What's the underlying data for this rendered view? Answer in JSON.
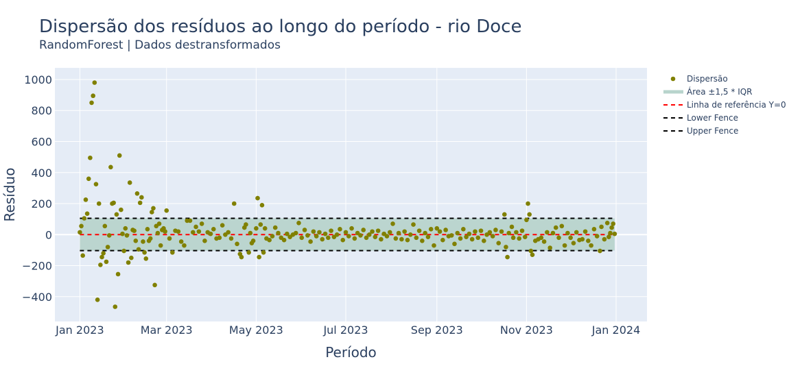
{
  "chart_data": {
    "type": "scatter",
    "title": "Dispersão dos resíduos ao longo do período - rio Doce",
    "subtitle": "RandomForest | Dados destransformados",
    "xlabel": "Período",
    "ylabel": "Resíduo",
    "xlim": [
      "2022-12-15",
      "2024-01-22"
    ],
    "ylim": [
      -560,
      1075
    ],
    "x_ticks": [
      {
        "date": "2023-01-01",
        "label": "Jan 2023"
      },
      {
        "date": "2023-03-01",
        "label": "Mar 2023"
      },
      {
        "date": "2023-05-01",
        "label": "May 2023"
      },
      {
        "date": "2023-07-01",
        "label": "Jul 2023"
      },
      {
        "date": "2023-09-01",
        "label": "Sep 2023"
      },
      {
        "date": "2023-11-01",
        "label": "Nov 2023"
      },
      {
        "date": "2024-01-01",
        "label": "Jan 2024"
      }
    ],
    "y_ticks": [
      {
        "value": 1000,
        "label": "1000"
      },
      {
        "value": 800,
        "label": "800"
      },
      {
        "value": 600,
        "label": "600"
      },
      {
        "value": 400,
        "label": "400"
      },
      {
        "value": 200,
        "label": "200"
      },
      {
        "value": 0,
        "label": "0"
      },
      {
        "value": -200,
        "label": "−200"
      },
      {
        "value": -400,
        "label": "−400"
      }
    ],
    "grid": true,
    "legend_position": "top-right",
    "lower_fence": -103,
    "upper_fence": 105,
    "fence_range": [
      "2023-01-01",
      "2023-12-31"
    ],
    "series": [
      {
        "name": "Dispersão",
        "type": "scatter",
        "color": "#808000",
        "points": [
          {
            "x": "2023-01-01",
            "y": 15
          },
          {
            "x": "2023-01-02",
            "y": 55
          },
          {
            "x": "2023-01-03",
            "y": -135
          },
          {
            "x": "2023-01-04",
            "y": 105
          },
          {
            "x": "2023-01-05",
            "y": 225
          },
          {
            "x": "2023-01-06",
            "y": 135
          },
          {
            "x": "2023-01-07",
            "y": 360
          },
          {
            "x": "2023-01-08",
            "y": 495
          },
          {
            "x": "2023-01-09",
            "y": 850
          },
          {
            "x": "2023-01-10",
            "y": 895
          },
          {
            "x": "2023-01-11",
            "y": 980
          },
          {
            "x": "2023-01-12",
            "y": 325
          },
          {
            "x": "2023-01-13",
            "y": -420
          },
          {
            "x": "2023-01-14",
            "y": 200
          },
          {
            "x": "2023-01-15",
            "y": -195
          },
          {
            "x": "2023-01-16",
            "y": -145
          },
          {
            "x": "2023-01-17",
            "y": -120
          },
          {
            "x": "2023-01-18",
            "y": 55
          },
          {
            "x": "2023-01-19",
            "y": -175
          },
          {
            "x": "2023-01-20",
            "y": -80
          },
          {
            "x": "2023-01-21",
            "y": -5
          },
          {
            "x": "2023-01-22",
            "y": 435
          },
          {
            "x": "2023-01-23",
            "y": 200
          },
          {
            "x": "2023-01-24",
            "y": 205
          },
          {
            "x": "2023-01-25",
            "y": -465
          },
          {
            "x": "2023-01-26",
            "y": 130
          },
          {
            "x": "2023-01-27",
            "y": -255
          },
          {
            "x": "2023-01-28",
            "y": 510
          },
          {
            "x": "2023-01-29",
            "y": 160
          },
          {
            "x": "2023-01-30",
            "y": 5
          },
          {
            "x": "2023-01-31",
            "y": -105
          },
          {
            "x": "2023-02-01",
            "y": 40
          },
          {
            "x": "2023-02-02",
            "y": -5
          },
          {
            "x": "2023-02-03",
            "y": -180
          },
          {
            "x": "2023-02-04",
            "y": 335
          },
          {
            "x": "2023-02-05",
            "y": -150
          },
          {
            "x": "2023-02-06",
            "y": 30
          },
          {
            "x": "2023-02-07",
            "y": 25
          },
          {
            "x": "2023-02-08",
            "y": -40
          },
          {
            "x": "2023-02-09",
            "y": 265
          },
          {
            "x": "2023-02-10",
            "y": -95
          },
          {
            "x": "2023-02-11",
            "y": 205
          },
          {
            "x": "2023-02-12",
            "y": 240
          },
          {
            "x": "2023-02-13",
            "y": -45
          },
          {
            "x": "2023-02-14",
            "y": -115
          },
          {
            "x": "2023-02-15",
            "y": -155
          },
          {
            "x": "2023-02-16",
            "y": 35
          },
          {
            "x": "2023-02-17",
            "y": -40
          },
          {
            "x": "2023-02-18",
            "y": -25
          },
          {
            "x": "2023-02-19",
            "y": 145
          },
          {
            "x": "2023-02-20",
            "y": 170
          },
          {
            "x": "2023-02-21",
            "y": -325
          },
          {
            "x": "2023-02-22",
            "y": 55
          },
          {
            "x": "2023-02-23",
            "y": 10
          },
          {
            "x": "2023-02-24",
            "y": 70
          },
          {
            "x": "2023-02-25",
            "y": -70
          },
          {
            "x": "2023-02-26",
            "y": 30
          },
          {
            "x": "2023-02-27",
            "y": 40
          },
          {
            "x": "2023-02-28",
            "y": 20
          },
          {
            "x": "2023-03-01",
            "y": 155
          },
          {
            "x": "2023-03-03",
            "y": -25
          },
          {
            "x": "2023-03-05",
            "y": -115
          },
          {
            "x": "2023-03-07",
            "y": 25
          },
          {
            "x": "2023-03-09",
            "y": 20
          },
          {
            "x": "2023-03-11",
            "y": -45
          },
          {
            "x": "2023-03-13",
            "y": -70
          },
          {
            "x": "2023-03-15",
            "y": 90
          },
          {
            "x": "2023-03-17",
            "y": 90
          },
          {
            "x": "2023-03-19",
            "y": 15
          },
          {
            "x": "2023-03-21",
            "y": 50
          },
          {
            "x": "2023-03-23",
            "y": 20
          },
          {
            "x": "2023-03-25",
            "y": 70
          },
          {
            "x": "2023-03-27",
            "y": -40
          },
          {
            "x": "2023-03-29",
            "y": 15
          },
          {
            "x": "2023-03-31",
            "y": 5
          },
          {
            "x": "2023-04-02",
            "y": 35
          },
          {
            "x": "2023-04-04",
            "y": -25
          },
          {
            "x": "2023-04-06",
            "y": -20
          },
          {
            "x": "2023-04-08",
            "y": 60
          },
          {
            "x": "2023-04-10",
            "y": 0
          },
          {
            "x": "2023-04-12",
            "y": 15
          },
          {
            "x": "2023-04-14",
            "y": -25
          },
          {
            "x": "2023-04-16",
            "y": 200
          },
          {
            "x": "2023-04-18",
            "y": -60
          },
          {
            "x": "2023-04-20",
            "y": -125
          },
          {
            "x": "2023-04-21",
            "y": -145
          },
          {
            "x": "2023-04-23",
            "y": 45
          },
          {
            "x": "2023-04-24",
            "y": 65
          },
          {
            "x": "2023-04-26",
            "y": -115
          },
          {
            "x": "2023-04-27",
            "y": 10
          },
          {
            "x": "2023-04-28",
            "y": -55
          },
          {
            "x": "2023-04-29",
            "y": -40
          },
          {
            "x": "2023-05-01",
            "y": 40
          },
          {
            "x": "2023-05-02",
            "y": 235
          },
          {
            "x": "2023-05-03",
            "y": -145
          },
          {
            "x": "2023-05-04",
            "y": 65
          },
          {
            "x": "2023-05-05",
            "y": 190
          },
          {
            "x": "2023-05-06",
            "y": -115
          },
          {
            "x": "2023-05-07",
            "y": 40
          },
          {
            "x": "2023-05-08",
            "y": -25
          },
          {
            "x": "2023-05-10",
            "y": -35
          },
          {
            "x": "2023-05-12",
            "y": -10
          },
          {
            "x": "2023-05-14",
            "y": 45
          },
          {
            "x": "2023-05-16",
            "y": 10
          },
          {
            "x": "2023-05-18",
            "y": -20
          },
          {
            "x": "2023-05-20",
            "y": -35
          },
          {
            "x": "2023-05-22",
            "y": 5
          },
          {
            "x": "2023-05-24",
            "y": -15
          },
          {
            "x": "2023-05-26",
            "y": 0
          },
          {
            "x": "2023-05-28",
            "y": 10
          },
          {
            "x": "2023-05-30",
            "y": 75
          },
          {
            "x": "2023-06-01",
            "y": -20
          },
          {
            "x": "2023-06-03",
            "y": 30
          },
          {
            "x": "2023-06-05",
            "y": -5
          },
          {
            "x": "2023-06-07",
            "y": -45
          },
          {
            "x": "2023-06-09",
            "y": 20
          },
          {
            "x": "2023-06-11",
            "y": -10
          },
          {
            "x": "2023-06-13",
            "y": 15
          },
          {
            "x": "2023-06-15",
            "y": -30
          },
          {
            "x": "2023-06-17",
            "y": 5
          },
          {
            "x": "2023-06-19",
            "y": -20
          },
          {
            "x": "2023-06-21",
            "y": 25
          },
          {
            "x": "2023-06-23",
            "y": -15
          },
          {
            "x": "2023-06-25",
            "y": 0
          },
          {
            "x": "2023-06-27",
            "y": 35
          },
          {
            "x": "2023-06-29",
            "y": -35
          },
          {
            "x": "2023-07-01",
            "y": 15
          },
          {
            "x": "2023-07-03",
            "y": -10
          },
          {
            "x": "2023-07-05",
            "y": 40
          },
          {
            "x": "2023-07-07",
            "y": -25
          },
          {
            "x": "2023-07-09",
            "y": 10
          },
          {
            "x": "2023-07-11",
            "y": -5
          },
          {
            "x": "2023-07-13",
            "y": 30
          },
          {
            "x": "2023-07-15",
            "y": -20
          },
          {
            "x": "2023-07-17",
            "y": 0
          },
          {
            "x": "2023-07-19",
            "y": 20
          },
          {
            "x": "2023-07-21",
            "y": -15
          },
          {
            "x": "2023-07-23",
            "y": 25
          },
          {
            "x": "2023-07-25",
            "y": -30
          },
          {
            "x": "2023-07-27",
            "y": 5
          },
          {
            "x": "2023-07-29",
            "y": -10
          },
          {
            "x": "2023-07-31",
            "y": 15
          },
          {
            "x": "2023-08-02",
            "y": 70
          },
          {
            "x": "2023-08-04",
            "y": -25
          },
          {
            "x": "2023-08-06",
            "y": 10
          },
          {
            "x": "2023-08-08",
            "y": -30
          },
          {
            "x": "2023-08-10",
            "y": 20
          },
          {
            "x": "2023-08-12",
            "y": -35
          },
          {
            "x": "2023-08-14",
            "y": 0
          },
          {
            "x": "2023-08-16",
            "y": 65
          },
          {
            "x": "2023-08-18",
            "y": -20
          },
          {
            "x": "2023-08-20",
            "y": 25
          },
          {
            "x": "2023-08-22",
            "y": -40
          },
          {
            "x": "2023-08-24",
            "y": 10
          },
          {
            "x": "2023-08-26",
            "y": -15
          },
          {
            "x": "2023-08-28",
            "y": 35
          },
          {
            "x": "2023-08-30",
            "y": -70
          },
          {
            "x": "2023-09-01",
            "y": 40
          },
          {
            "x": "2023-09-03",
            "y": 20
          },
          {
            "x": "2023-09-05",
            "y": -35
          },
          {
            "x": "2023-09-07",
            "y": 30
          },
          {
            "x": "2023-09-09",
            "y": -10
          },
          {
            "x": "2023-09-11",
            "y": -5
          },
          {
            "x": "2023-09-13",
            "y": -60
          },
          {
            "x": "2023-09-15",
            "y": 10
          },
          {
            "x": "2023-09-17",
            "y": -25
          },
          {
            "x": "2023-09-19",
            "y": 35
          },
          {
            "x": "2023-09-21",
            "y": -15
          },
          {
            "x": "2023-09-23",
            "y": 5
          },
          {
            "x": "2023-09-25",
            "y": -30
          },
          {
            "x": "2023-09-27",
            "y": 20
          },
          {
            "x": "2023-09-29",
            "y": -20
          },
          {
            "x": "2023-10-01",
            "y": 25
          },
          {
            "x": "2023-10-03",
            "y": -40
          },
          {
            "x": "2023-10-05",
            "y": 0
          },
          {
            "x": "2023-10-07",
            "y": 15
          },
          {
            "x": "2023-10-09",
            "y": -10
          },
          {
            "x": "2023-10-11",
            "y": 30
          },
          {
            "x": "2023-10-13",
            "y": -55
          },
          {
            "x": "2023-10-15",
            "y": 20
          },
          {
            "x": "2023-10-17",
            "y": 130
          },
          {
            "x": "2023-10-18",
            "y": -80
          },
          {
            "x": "2023-10-19",
            "y": -145
          },
          {
            "x": "2023-10-20",
            "y": 10
          },
          {
            "x": "2023-10-22",
            "y": 50
          },
          {
            "x": "2023-10-23",
            "y": -20
          },
          {
            "x": "2023-10-25",
            "y": 15
          },
          {
            "x": "2023-10-27",
            "y": -25
          },
          {
            "x": "2023-10-29",
            "y": 25
          },
          {
            "x": "2023-10-31",
            "y": -15
          },
          {
            "x": "2023-11-01",
            "y": 95
          },
          {
            "x": "2023-11-02",
            "y": 200
          },
          {
            "x": "2023-11-03",
            "y": 130
          },
          {
            "x": "2023-11-04",
            "y": -105
          },
          {
            "x": "2023-11-05",
            "y": -130
          },
          {
            "x": "2023-11-07",
            "y": -40
          },
          {
            "x": "2023-11-09",
            "y": -30
          },
          {
            "x": "2023-11-11",
            "y": -20
          },
          {
            "x": "2023-11-13",
            "y": -45
          },
          {
            "x": "2023-11-15",
            "y": 15
          },
          {
            "x": "2023-11-17",
            "y": -85
          },
          {
            "x": "2023-11-19",
            "y": 10
          },
          {
            "x": "2023-11-21",
            "y": 45
          },
          {
            "x": "2023-11-23",
            "y": -20
          },
          {
            "x": "2023-11-25",
            "y": 55
          },
          {
            "x": "2023-11-27",
            "y": -70
          },
          {
            "x": "2023-11-29",
            "y": 10
          },
          {
            "x": "2023-12-01",
            "y": -20
          },
          {
            "x": "2023-12-03",
            "y": -55
          },
          {
            "x": "2023-12-05",
            "y": 15
          },
          {
            "x": "2023-12-07",
            "y": -35
          },
          {
            "x": "2023-12-09",
            "y": -30
          },
          {
            "x": "2023-12-11",
            "y": 20
          },
          {
            "x": "2023-12-13",
            "y": -40
          },
          {
            "x": "2023-12-15",
            "y": -70
          },
          {
            "x": "2023-12-17",
            "y": 35
          },
          {
            "x": "2023-12-19",
            "y": -10
          },
          {
            "x": "2023-12-21",
            "y": -105
          },
          {
            "x": "2023-12-22",
            "y": 50
          },
          {
            "x": "2023-12-24",
            "y": -30
          },
          {
            "x": "2023-12-26",
            "y": 75
          },
          {
            "x": "2023-12-27",
            "y": -15
          },
          {
            "x": "2023-12-28",
            "y": 10
          },
          {
            "x": "2023-12-29",
            "y": 45
          },
          {
            "x": "2023-12-30",
            "y": 70
          },
          {
            "x": "2023-12-31",
            "y": 5
          }
        ]
      },
      {
        "name": "Área ±1,5 * IQR",
        "type": "area",
        "color": "#b8d4cc"
      },
      {
        "name": "Linha de referência Y=0",
        "type": "line",
        "color": "#ff0000",
        "y": 0,
        "dash": "dash"
      },
      {
        "name": "Lower Fence",
        "type": "line",
        "color": "#000000",
        "y": -103,
        "dash": "dash"
      },
      {
        "name": "Upper Fence",
        "type": "line",
        "color": "#000000",
        "y": 105,
        "dash": "dash"
      }
    ]
  }
}
